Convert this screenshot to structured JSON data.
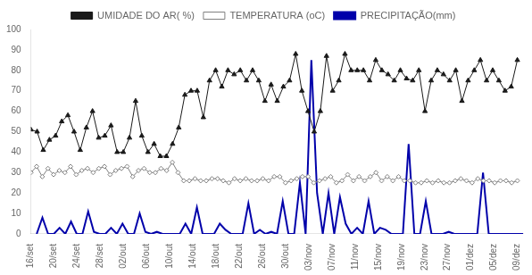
{
  "chart_data": {
    "type": "line",
    "legend": "top",
    "grid": false,
    "xlim": [
      0,
      86
    ],
    "xticks": [
      {
        "value": 0,
        "label": "16/set"
      },
      {
        "value": 4.048,
        "label": "20/set"
      },
      {
        "value": 8.095,
        "label": "24/set"
      },
      {
        "value": 12.143,
        "label": "28/set"
      },
      {
        "value": 16.19,
        "label": "02/out"
      },
      {
        "value": 20.238,
        "label": "06/out"
      },
      {
        "value": 24.286,
        "label": "10/out"
      },
      {
        "value": 28.333,
        "label": "14/out"
      },
      {
        "value": 32.381,
        "label": "18/out"
      },
      {
        "value": 36.429,
        "label": "22/out"
      },
      {
        "value": 40.476,
        "label": "26/out"
      },
      {
        "value": 44.524,
        "label": "30/out"
      },
      {
        "value": 48.571,
        "label": "03/nov"
      },
      {
        "value": 52.619,
        "label": "07/nov"
      },
      {
        "value": 56.667,
        "label": "11/nov"
      },
      {
        "value": 60.714,
        "label": "15/nov"
      },
      {
        "value": 64.762,
        "label": "19/nov"
      },
      {
        "value": 68.81,
        "label": "23/nov"
      },
      {
        "value": 72.857,
        "label": "27/nov"
      },
      {
        "value": 76.905,
        "label": "01/dez"
      },
      {
        "value": 80.952,
        "label": "05/dez"
      },
      {
        "value": 85,
        "label": "09/dez"
      }
    ],
    "ylim": [
      0,
      100
    ],
    "yticks": [
      0,
      10,
      20,
      30,
      40,
      50,
      60,
      70,
      80,
      90,
      100
    ],
    "series": [
      {
        "name": "TEMPERATURA (oC)",
        "color": "#808080",
        "marker": "diamond",
        "line_style": "solid",
        "x": [
          0,
          0.988,
          1.977,
          2.965,
          3.953,
          4.942,
          5.93,
          6.919,
          7.907,
          8.895,
          9.884,
          10.872,
          11.86,
          12.849,
          13.837,
          14.826,
          15.814,
          16.802,
          17.791,
          18.779,
          19.767,
          20.756,
          21.744,
          22.733,
          23.721,
          24.709,
          25.698,
          26.686,
          27.674,
          28.663,
          29.651,
          30.64,
          31.628,
          32.616,
          33.605,
          34.593,
          35.581,
          36.57,
          37.558,
          38.547,
          39.535,
          40.523,
          41.512,
          42.5,
          43.488,
          44.477,
          45.465,
          46.453,
          47.442,
          48.43,
          49.419,
          50.407,
          51.395,
          52.384,
          53.372,
          54.36,
          55.349,
          56.337,
          57.326,
          58.314,
          59.302,
          60.291,
          61.279,
          62.267,
          63.256,
          64.244,
          65.233,
          66.221,
          67.209,
          68.198,
          69.186,
          70.174,
          71.163,
          72.151,
          73.14,
          74.128,
          75.116,
          76.105,
          77.093,
          78.081,
          79.07,
          80.058,
          81.047,
          82.035,
          83.023,
          84.012,
          85
        ],
        "values": [
          30,
          33,
          28,
          32,
          29,
          31,
          30,
          33,
          29,
          31,
          32,
          30,
          32,
          33,
          29,
          31,
          32,
          33,
          28,
          31,
          32,
          30,
          30,
          32,
          31,
          35,
          30,
          26,
          26,
          27,
          26,
          26,
          27,
          27,
          26,
          25,
          27,
          26,
          27,
          26,
          26,
          27,
          26,
          28,
          28,
          25,
          26,
          27,
          28,
          28,
          25,
          26,
          27,
          28,
          25,
          26,
          29,
          26,
          28,
          26,
          28,
          30,
          26,
          28,
          26,
          28,
          26,
          26,
          25,
          25,
          26,
          25,
          26,
          25,
          25,
          26,
          27,
          26,
          25,
          27,
          26,
          26,
          25,
          26,
          26,
          25,
          26
        ]
      },
      {
        "name": "UMIDADE DO AR( %)",
        "color": "#1a1a1a",
        "marker": "triangle",
        "line_style": "solid",
        "x": [
          0,
          1.076,
          2.152,
          3.228,
          4.304,
          5.38,
          6.456,
          7.532,
          8.608,
          9.684,
          10.759,
          11.835,
          12.911,
          13.987,
          15.063,
          16.139,
          17.215,
          18.291,
          19.367,
          20.443,
          21.519,
          22.595,
          23.671,
          24.747,
          25.823,
          26.899,
          27.975,
          29.051,
          30.127,
          31.203,
          32.278,
          33.354,
          34.43,
          35.506,
          36.582,
          37.658,
          38.734,
          39.81,
          40.886,
          41.962,
          43.038,
          44.114,
          45.19,
          46.266,
          47.342,
          48.418,
          49.494,
          50.57,
          51.646,
          52.722,
          53.797,
          54.873,
          55.949,
          57.025,
          58.101,
          59.177,
          60.253,
          61.329,
          62.405,
          63.481,
          64.557,
          65.633,
          66.709,
          67.785,
          68.861,
          69.937,
          71.013,
          72.089,
          73.165,
          74.241,
          75.316,
          76.392,
          77.468,
          78.544,
          79.62,
          80.696,
          81.772,
          82.848,
          83.924,
          85
        ],
        "values": [
          51,
          50,
          41,
          46,
          48,
          55,
          58,
          50,
          41,
          52,
          60,
          47,
          48,
          53,
          40,
          40,
          47,
          65,
          48,
          40,
          44,
          38,
          38,
          44,
          52,
          68,
          70,
          70,
          57,
          75,
          80,
          72,
          80,
          78,
          80,
          75,
          80,
          75,
          65,
          73,
          65,
          72,
          75,
          88,
          70,
          60,
          50,
          60,
          87,
          70,
          75,
          88,
          80,
          80,
          80,
          75,
          85,
          80,
          78,
          75,
          80,
          76,
          75,
          80,
          60,
          75,
          80,
          78,
          75,
          80,
          65,
          75,
          80,
          85,
          75,
          80,
          75,
          70,
          72,
          85
        ]
      },
      {
        "name": "PRECIPITAÇÃO(mm)",
        "color": "#0000aa",
        "marker": "none",
        "line_style": "solid",
        "x": [
          1,
          2,
          3,
          4,
          5,
          6,
          7,
          8,
          9,
          10,
          11,
          12,
          13,
          14,
          15,
          16,
          17,
          18,
          19,
          20,
          21,
          22,
          23,
          24,
          25,
          26,
          27,
          28,
          29,
          30,
          31,
          32,
          33,
          34,
          35,
          36,
          37,
          38,
          39,
          40,
          41,
          42,
          43,
          44,
          45,
          46,
          47,
          48,
          49,
          50,
          51,
          52,
          53,
          54,
          55,
          56,
          57,
          58,
          59,
          60,
          61,
          62,
          63,
          64,
          65,
          66,
          67,
          68,
          69,
          70,
          71,
          72,
          73,
          74,
          75,
          76,
          77,
          78,
          79,
          80,
          81,
          82,
          83,
          84,
          85,
          86
        ],
        "values": [
          0,
          8,
          0,
          0,
          3,
          0,
          6,
          0,
          0,
          11,
          1,
          0,
          0,
          3,
          0,
          5,
          0,
          0,
          10,
          1,
          0,
          1,
          0,
          0,
          0,
          0,
          5,
          0,
          13,
          0,
          0,
          0,
          5,
          2,
          0,
          0,
          0,
          15,
          0,
          2,
          0,
          1,
          0,
          16,
          0,
          0,
          25,
          0,
          85,
          20,
          0,
          20,
          0,
          18,
          5,
          0,
          3,
          0,
          16,
          0,
          3,
          2,
          0,
          0,
          0,
          44,
          0,
          0,
          16,
          0,
          0,
          0,
          1,
          0,
          0,
          0,
          0,
          0,
          30,
          0,
          0,
          0,
          0,
          0,
          0,
          0
        ]
      }
    ]
  }
}
